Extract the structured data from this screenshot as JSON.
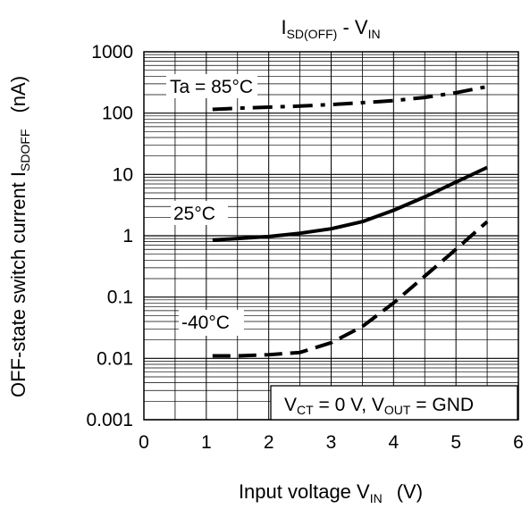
{
  "chart_data": {
    "type": "line",
    "title": {
      "main": "I",
      "sub": "SD(OFF)",
      "mid": " - V",
      "sub2": "IN"
    },
    "xlabel": {
      "main": "Input voltage V",
      "sub": "IN",
      "unit": "(V)"
    },
    "ylabel": {
      "main": "OFF-state switch current I",
      "sub": "SDOFF",
      "unit": "(nA)"
    },
    "xlim": [
      0,
      6
    ],
    "ylim": [
      0.001,
      1000
    ],
    "yscale": "log",
    "grid": true,
    "x_ticks": [
      "0",
      "1",
      "2",
      "3",
      "4",
      "5",
      "6"
    ],
    "y_ticks": [
      "0.001",
      "0.01",
      "0.1",
      "1",
      "10",
      "100",
      "1000"
    ],
    "series": [
      {
        "name": "Ta = 85°C",
        "style": "dash-dot",
        "x": [
          1.1,
          1.5,
          2.0,
          2.5,
          3.0,
          3.5,
          4.0,
          4.5,
          5.0,
          5.5
        ],
        "y": [
          115,
          120,
          125,
          130,
          138,
          148,
          160,
          180,
          215,
          270
        ]
      },
      {
        "name": "25°C",
        "style": "solid",
        "x": [
          1.1,
          1.5,
          2.0,
          2.5,
          3.0,
          3.5,
          4.0,
          4.5,
          5.0,
          5.5
        ],
        "y": [
          0.85,
          0.9,
          0.97,
          1.1,
          1.3,
          1.7,
          2.6,
          4.3,
          7.5,
          13
        ]
      },
      {
        "name": "-40°C",
        "style": "dashed",
        "x": [
          1.1,
          1.5,
          2.0,
          2.5,
          3.0,
          3.5,
          4.0,
          4.5,
          5.0,
          5.5
        ],
        "y": [
          0.011,
          0.011,
          0.0115,
          0.0125,
          0.018,
          0.033,
          0.08,
          0.22,
          0.6,
          1.7
        ]
      }
    ],
    "annotations": {
      "condition": {
        "v1": "V",
        "v1sub": "CT",
        "v1rest": " = 0 V, V",
        "v2sub": "OUT",
        "v2rest": " = GND"
      }
    }
  }
}
